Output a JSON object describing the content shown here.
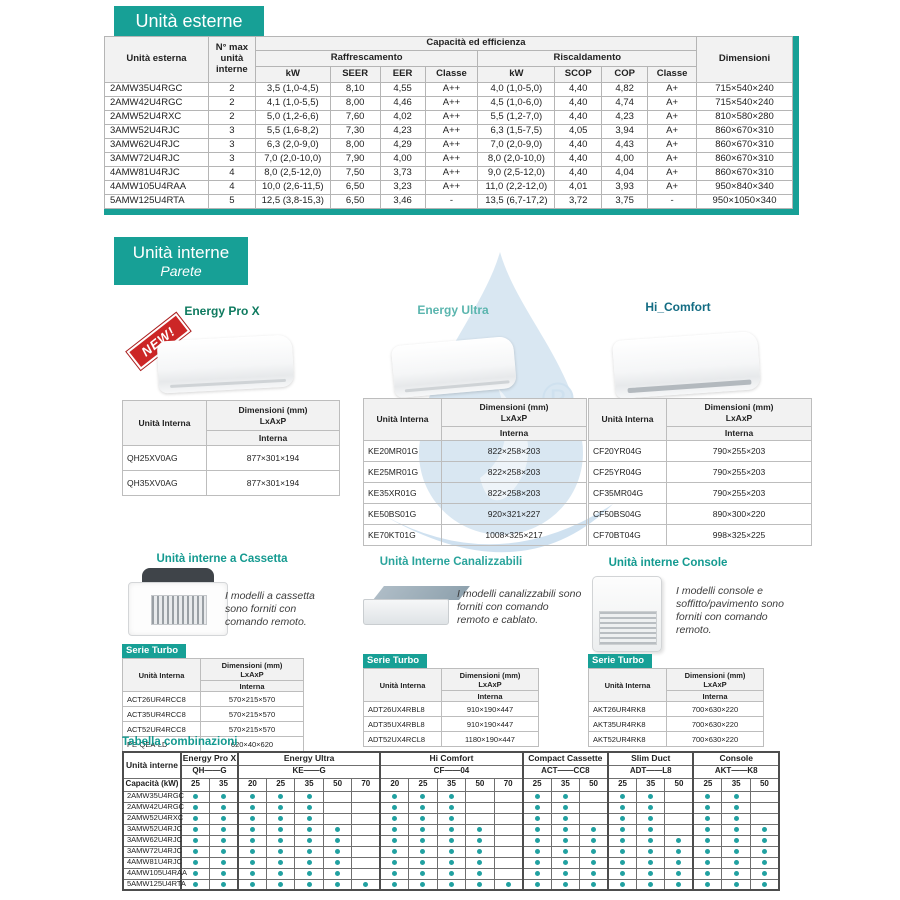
{
  "colors": {
    "teal_accent": "#17a096",
    "dot_teal": "#21a1a1",
    "energy_pro_x_green": "#0e7a5f",
    "energy_ultra_teal": "#5ab5ae",
    "hi_comfort_blue": "#136c83",
    "new_badge_red": "#cc2626",
    "watermark_blue": "#cfe1ef"
  },
  "badges": {
    "unita_esterne": "Unità esterne",
    "unita_interne": "Unità interne",
    "parete": "Parete"
  },
  "outdoor_table": {
    "col_unit": "Unità esterna",
    "col_max": "N° max unità interne",
    "col_capacity_group": "Capacità ed efficienza",
    "col_cooling": "Raffrescamento",
    "col_heating": "Riscaldamento",
    "cool_cols": [
      "kW",
      "SEER",
      "EER",
      "Classe"
    ],
    "heat_cols": [
      "kW",
      "SCOP",
      "COP",
      "Classe"
    ],
    "col_dimensions": "Dimensioni",
    "rows": [
      [
        "2AMW35U4RGC",
        "2",
        "3,5 (1,0-4,5)",
        "8,10",
        "4,55",
        "A++",
        "4,0 (1,0-5,0)",
        "4,40",
        "4,82",
        "A+",
        "715×540×240"
      ],
      [
        "2AMW42U4RGC",
        "2",
        "4,1 (1,0-5,5)",
        "8,00",
        "4,46",
        "A++",
        "4,5 (1,0-6,0)",
        "4,40",
        "4,74",
        "A+",
        "715×540×240"
      ],
      [
        "2AMW52U4RXC",
        "2",
        "5,0 (1,2-6,6)",
        "7,60",
        "4,02",
        "A++",
        "5,5 (1,2-7,0)",
        "4,40",
        "4,23",
        "A+",
        "810×580×280"
      ],
      [
        "3AMW52U4RJC",
        "3",
        "5,5 (1,6-8,2)",
        "7,30",
        "4,23",
        "A++",
        "6,3 (1,5-7,5)",
        "4,05",
        "3,94",
        "A+",
        "860×670×310"
      ],
      [
        "3AMW62U4RJC",
        "3",
        "6,3 (2,0-9,0)",
        "8,00",
        "4,29",
        "A++",
        "7,0 (2,0-9,0)",
        "4,40",
        "4,43",
        "A+",
        "860×670×310"
      ],
      [
        "3AMW72U4RJC",
        "3",
        "7,0 (2,0-10,0)",
        "7,90",
        "4,00",
        "A++",
        "8,0 (2,0-10,0)",
        "4,40",
        "4,00",
        "A+",
        "860×670×310"
      ],
      [
        "4AMW81U4RJC",
        "4",
        "8,0 (2,5-12,0)",
        "7,50",
        "3,73",
        "A++",
        "9,0 (2,5-12,0)",
        "4,40",
        "4,04",
        "A+",
        "860×670×310"
      ],
      [
        "4AMW105U4RAA",
        "4",
        "10,0 (2,6-11,5)",
        "6,50",
        "3,23",
        "A++",
        "11,0 (2,2-12,0)",
        "4,01",
        "3,93",
        "A+",
        "950×840×340"
      ],
      [
        "5AMW125U4RTA",
        "5",
        "12,5 (3,8-15,3)",
        "6,50",
        "3,46",
        "-",
        "13,5 (6,7-17,2)",
        "3,72",
        "3,75",
        "-",
        "950×1050×340"
      ]
    ]
  },
  "mini_table_labels": {
    "unit": "Unità Interna",
    "dim1": "Dimensioni (mm)",
    "dim2": "LxAxP",
    "sub": "Interna"
  },
  "parete": {
    "energy_pro_x": {
      "title": "Energy Pro X",
      "new_badge": "NEW!",
      "rows": [
        [
          "QH25XV0AG",
          "877×301×194"
        ],
        [
          "QH35XV0AG",
          "877×301×194"
        ]
      ]
    },
    "energy_ultra": {
      "title": "Energy Ultra",
      "rows": [
        [
          "KE20MR01G",
          "822×258×203"
        ],
        [
          "KE25MR01G",
          "822×258×203"
        ],
        [
          "KE35XR01G",
          "822×258×203"
        ],
        [
          "KE50BS01G",
          "920×321×227"
        ],
        [
          "KE70KT01G",
          "1008×325×217"
        ]
      ]
    },
    "hi_comfort": {
      "title": "Hi_Comfort",
      "rows": [
        [
          "CF20YR04G",
          "790×255×203"
        ],
        [
          "CF25YR04G",
          "790×255×203"
        ],
        [
          "CF35MR04G",
          "790×255×203"
        ],
        [
          "CF50BS04G",
          "890×300×220"
        ],
        [
          "CF70BT04G",
          "998×325×225"
        ]
      ]
    }
  },
  "other_units": {
    "cassetta": {
      "title": "Unità interne a Cassetta",
      "description": "I modelli a cassetta sono forniti con comando remoto.",
      "serie": "Serie Turbo",
      "rows": [
        [
          "ACT26UR4RCC8",
          "570×215×570"
        ],
        [
          "ACT35UR4RCC8",
          "570×215×570"
        ],
        [
          "ACT52UR4RCC8",
          "570×215×570"
        ],
        [
          "PE-QEA-LD",
          "620×40×620"
        ]
      ]
    },
    "canalizzabili": {
      "title": "Unità Interne Canalizzabili",
      "description": "I modelli canalizzabili sono forniti con comando remoto e cablato.",
      "serie": "Serie Turbo",
      "rows": [
        [
          "ADT26UX4RBL8",
          "910×190×447"
        ],
        [
          "ADT35UX4RBL8",
          "910×190×447"
        ],
        [
          "ADT52UX4RCL8",
          "1180×190×447"
        ]
      ]
    },
    "console": {
      "title": "Unità interne Console",
      "description": "I modelli console e soffitto/pavimento sono forniti con comando remoto.",
      "serie": "Serie Turbo",
      "rows": [
        [
          "AKT26UR4RK8",
          "700×630×220"
        ],
        [
          "AKT35UR4RK8",
          "700×630×220"
        ],
        [
          "AKT52UR4RK8",
          "700×630×220"
        ]
      ]
    }
  },
  "combo_table": {
    "title": "Tabella combinazioni",
    "unit_header": "Unità interne",
    "capacity_header": "Capacità (kW)",
    "groups": [
      {
        "name": "Energy Pro X",
        "code": "QH——G",
        "capacities": [
          "25",
          "35"
        ]
      },
      {
        "name": "Energy Ultra",
        "code": "KE——G",
        "capacities": [
          "20",
          "25",
          "35",
          "50",
          "70"
        ]
      },
      {
        "name": "Hi Comfort",
        "code": "CF——04",
        "capacities": [
          "20",
          "25",
          "35",
          "50",
          "70"
        ]
      },
      {
        "name": "Compact Cassette",
        "code": "ACT——CC8",
        "capacities": [
          "25",
          "35",
          "50"
        ]
      },
      {
        "name": "Slim Duct",
        "code": "ADT——L8",
        "capacities": [
          "25",
          "35",
          "50"
        ]
      },
      {
        "name": "Console",
        "code": "AKT——K8",
        "capacities": [
          "25",
          "35",
          "50"
        ]
      }
    ],
    "rows": [
      {
        "model": "2AMW35U4RGC",
        "dots": [
          1,
          1,
          1,
          1,
          1,
          0,
          0,
          1,
          1,
          1,
          0,
          0,
          1,
          1,
          0,
          1,
          1,
          0,
          1,
          1,
          0
        ]
      },
      {
        "model": "2AMW42U4RGC",
        "dots": [
          1,
          1,
          1,
          1,
          1,
          0,
          0,
          1,
          1,
          1,
          0,
          0,
          1,
          1,
          0,
          1,
          1,
          0,
          1,
          1,
          0
        ]
      },
      {
        "model": "2AMW52U4RXC",
        "dots": [
          1,
          1,
          1,
          1,
          1,
          0,
          0,
          1,
          1,
          1,
          0,
          0,
          1,
          1,
          0,
          1,
          1,
          0,
          1,
          1,
          0
        ]
      },
      {
        "model": "3AMW52U4RJC",
        "dots": [
          1,
          1,
          1,
          1,
          1,
          1,
          0,
          1,
          1,
          1,
          1,
          0,
          1,
          1,
          1,
          1,
          1,
          0,
          1,
          1,
          1
        ]
      },
      {
        "model": "3AMW62U4RJC",
        "dots": [
          1,
          1,
          1,
          1,
          1,
          1,
          0,
          1,
          1,
          1,
          1,
          0,
          1,
          1,
          1,
          1,
          1,
          1,
          1,
          1,
          1
        ]
      },
      {
        "model": "3AMW72U4RJC",
        "dots": [
          1,
          1,
          1,
          1,
          1,
          1,
          0,
          1,
          1,
          1,
          1,
          0,
          1,
          1,
          1,
          1,
          1,
          1,
          1,
          1,
          1
        ]
      },
      {
        "model": "4AMW81U4RJC",
        "dots": [
          1,
          1,
          1,
          1,
          1,
          1,
          0,
          1,
          1,
          1,
          1,
          0,
          1,
          1,
          1,
          1,
          1,
          1,
          1,
          1,
          1
        ]
      },
      {
        "model": "4AMW105U4RAA",
        "dots": [
          1,
          1,
          1,
          1,
          1,
          1,
          0,
          1,
          1,
          1,
          1,
          0,
          1,
          1,
          1,
          1,
          1,
          1,
          1,
          1,
          1
        ]
      },
      {
        "model": "5AMW125U4RTA",
        "dots": [
          1,
          1,
          1,
          1,
          1,
          1,
          1,
          1,
          1,
          1,
          1,
          1,
          1,
          1,
          1,
          1,
          1,
          1,
          1,
          1,
          1
        ]
      }
    ]
  }
}
